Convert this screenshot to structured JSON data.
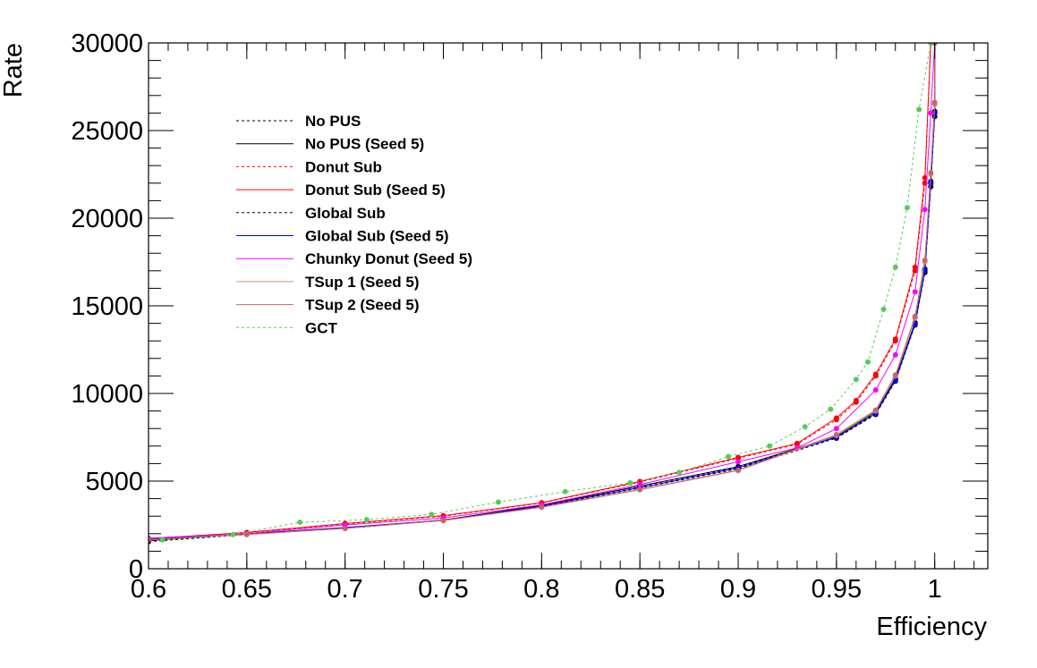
{
  "chart_data": {
    "type": "line",
    "title": "",
    "xlabel": "Efficiency",
    "ylabel": "Rate",
    "xlim": [
      0.6,
      1.027
    ],
    "ylim": [
      0,
      30000
    ],
    "x_ticks": [
      "0.6",
      "0.65",
      "0.7",
      "0.75",
      "0.8",
      "0.85",
      "0.9",
      "0.95",
      "1"
    ],
    "y_ticks": [
      "0",
      "5000",
      "10000",
      "15000",
      "20000",
      "25000",
      "30000"
    ],
    "grid": false,
    "legend_position": "top-left",
    "series": [
      {
        "name": "No PUS",
        "color": "#000000",
        "dashed": true,
        "marker": true,
        "points": [
          [
            0.6,
            1550
          ],
          [
            0.65,
            1950
          ],
          [
            0.7,
            2300
          ],
          [
            0.75,
            2750
          ],
          [
            0.8,
            3600
          ],
          [
            0.85,
            4700
          ],
          [
            0.9,
            5800
          ],
          [
            0.95,
            7500
          ],
          [
            0.97,
            8900
          ],
          [
            0.98,
            10800
          ],
          [
            0.99,
            14000
          ],
          [
            0.995,
            17000
          ],
          [
            0.998,
            22000
          ],
          [
            1.0,
            26000
          ],
          [
            1.0,
            30000
          ]
        ]
      },
      {
        "name": "No PUS (Seed 5)",
        "color": "#000000",
        "dashed": false,
        "marker": true,
        "points": [
          [
            0.6,
            1600
          ],
          [
            0.65,
            1980
          ],
          [
            0.7,
            2320
          ],
          [
            0.75,
            2780
          ],
          [
            0.8,
            3620
          ],
          [
            0.85,
            4720
          ],
          [
            0.9,
            5830
          ],
          [
            0.95,
            7550
          ],
          [
            0.97,
            8950
          ],
          [
            0.98,
            10850
          ],
          [
            0.99,
            14050
          ],
          [
            0.995,
            17100
          ],
          [
            0.998,
            22100
          ],
          [
            1.0,
            26100
          ],
          [
            1.0,
            30000
          ]
        ]
      },
      {
        "name": "Donut Sub",
        "color": "#ff0000",
        "dashed": true,
        "marker": true,
        "points": [
          [
            0.6,
            1700
          ],
          [
            0.65,
            2050
          ],
          [
            0.7,
            2550
          ],
          [
            0.75,
            3000
          ],
          [
            0.8,
            3750
          ],
          [
            0.85,
            4950
          ],
          [
            0.9,
            6300
          ],
          [
            0.93,
            7100
          ],
          [
            0.95,
            8500
          ],
          [
            0.96,
            9500
          ],
          [
            0.97,
            11000
          ],
          [
            0.98,
            13000
          ],
          [
            0.99,
            17000
          ],
          [
            0.995,
            22000
          ],
          [
            0.998,
            30000
          ]
        ]
      },
      {
        "name": "Donut Sub (Seed 5)",
        "color": "#ff0000",
        "dashed": false,
        "marker": true,
        "points": [
          [
            0.6,
            1720
          ],
          [
            0.65,
            2070
          ],
          [
            0.7,
            2580
          ],
          [
            0.75,
            3030
          ],
          [
            0.8,
            3770
          ],
          [
            0.85,
            4980
          ],
          [
            0.9,
            6350
          ],
          [
            0.93,
            7150
          ],
          [
            0.95,
            8600
          ],
          [
            0.96,
            9600
          ],
          [
            0.97,
            11100
          ],
          [
            0.98,
            13100
          ],
          [
            0.99,
            17200
          ],
          [
            0.995,
            22300
          ],
          [
            0.998,
            30000
          ]
        ]
      },
      {
        "name": "Global Sub",
        "color": "#000000",
        "dashed": true,
        "marker": true,
        "points": [
          [
            0.6,
            1650
          ],
          [
            0.65,
            1970
          ],
          [
            0.7,
            2330
          ],
          [
            0.75,
            2760
          ],
          [
            0.8,
            3550
          ],
          [
            0.85,
            4600
          ],
          [
            0.9,
            5700
          ],
          [
            0.95,
            7450
          ],
          [
            0.97,
            8800
          ],
          [
            0.98,
            10700
          ],
          [
            0.99,
            13900
          ],
          [
            0.995,
            16900
          ],
          [
            0.998,
            21800
          ],
          [
            1.0,
            25800
          ],
          [
            1.0,
            30000
          ]
        ]
      },
      {
        "name": "Global Sub (Seed 5)",
        "color": "#0000ff",
        "dashed": false,
        "marker": true,
        "points": [
          [
            0.6,
            1680
          ],
          [
            0.65,
            1990
          ],
          [
            0.7,
            2350
          ],
          [
            0.75,
            2770
          ],
          [
            0.8,
            3570
          ],
          [
            0.85,
            4630
          ],
          [
            0.9,
            5750
          ],
          [
            0.95,
            7500
          ],
          [
            0.97,
            8850
          ],
          [
            0.98,
            10750
          ],
          [
            0.99,
            13950
          ],
          [
            0.995,
            17000
          ],
          [
            0.998,
            22000
          ],
          [
            1.0,
            26000
          ],
          [
            1.0,
            30000
          ]
        ]
      },
      {
        "name": "Chunky Donut (Seed 5)",
        "color": "#ff00ff",
        "dashed": false,
        "marker": true,
        "points": [
          [
            0.6,
            1750
          ],
          [
            0.65,
            2000
          ],
          [
            0.7,
            2500
          ],
          [
            0.75,
            2900
          ],
          [
            0.8,
            3650
          ],
          [
            0.85,
            4800
          ],
          [
            0.9,
            6100
          ],
          [
            0.93,
            6900
          ],
          [
            0.95,
            8000
          ],
          [
            0.97,
            10200
          ],
          [
            0.98,
            12200
          ],
          [
            0.99,
            15800
          ],
          [
            0.995,
            20500
          ],
          [
            0.998,
            26000
          ],
          [
            1.0,
            30000
          ]
        ]
      },
      {
        "name": "TSup 1 (Seed 5)",
        "color": "#c89878",
        "dashed": false,
        "marker": true,
        "points": [
          [
            0.6,
            1650
          ],
          [
            0.65,
            1950
          ],
          [
            0.7,
            2300
          ],
          [
            0.75,
            2750
          ],
          [
            0.8,
            3500
          ],
          [
            0.85,
            4500
          ],
          [
            0.9,
            5600
          ],
          [
            0.95,
            7600
          ],
          [
            0.97,
            9000
          ],
          [
            0.98,
            11000
          ],
          [
            0.99,
            14300
          ],
          [
            0.995,
            17500
          ],
          [
            0.998,
            22500
          ],
          [
            1.0,
            26500
          ],
          [
            1.0,
            30000
          ]
        ]
      },
      {
        "name": "TSup 2 (Seed 5)",
        "color": "#c86464",
        "dashed": false,
        "marker": true,
        "points": [
          [
            0.6,
            1660
          ],
          [
            0.65,
            1960
          ],
          [
            0.7,
            2310
          ],
          [
            0.75,
            2760
          ],
          [
            0.8,
            3520
          ],
          [
            0.85,
            4520
          ],
          [
            0.9,
            5620
          ],
          [
            0.95,
            7650
          ],
          [
            0.97,
            9050
          ],
          [
            0.98,
            11050
          ],
          [
            0.99,
            14400
          ],
          [
            0.995,
            17600
          ],
          [
            0.998,
            22600
          ],
          [
            1.0,
            26600
          ],
          [
            1.0,
            30000
          ]
        ]
      },
      {
        "name": "GCT",
        "color": "#55cc55",
        "dashed": true,
        "marker": true,
        "points": [
          [
            0.607,
            1650
          ],
          [
            0.643,
            1950
          ],
          [
            0.677,
            2650
          ],
          [
            0.711,
            2800
          ],
          [
            0.744,
            3100
          ],
          [
            0.778,
            3800
          ],
          [
            0.812,
            4400
          ],
          [
            0.845,
            4900
          ],
          [
            0.87,
            5500
          ],
          [
            0.895,
            6400
          ],
          [
            0.916,
            7000
          ],
          [
            0.934,
            8100
          ],
          [
            0.947,
            9100
          ],
          [
            0.96,
            10800
          ],
          [
            0.966,
            11800
          ],
          [
            0.974,
            14800
          ],
          [
            0.98,
            17200
          ],
          [
            0.986,
            20600
          ],
          [
            0.992,
            26200
          ],
          [
            0.998,
            30000
          ]
        ]
      }
    ]
  }
}
